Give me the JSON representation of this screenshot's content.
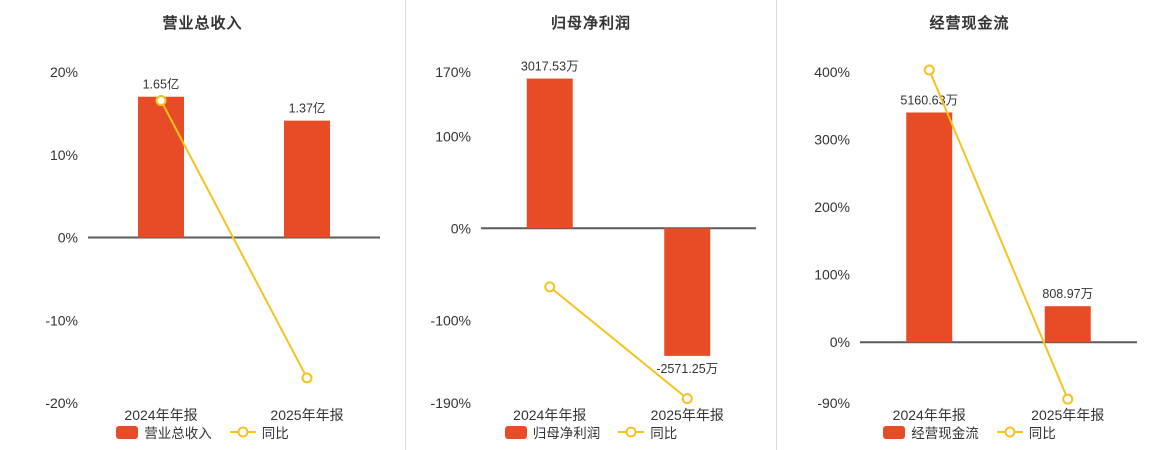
{
  "chart_data": [
    {
      "type": "bar",
      "title": "营业总收入",
      "categories": [
        "2024年年报",
        "2025年年报"
      ],
      "bar_series": {
        "name": "营业总收入",
        "values": [
          1.65,
          1.37
        ],
        "unit": "亿",
        "labels": [
          "1.65亿",
          "1.37亿"
        ]
      },
      "line_series": {
        "name": "同比",
        "values_pct": [
          16.55,
          -16.97
        ]
      },
      "y_axis": {
        "unit": "%",
        "max": 20,
        "min": -20,
        "ticks": [
          20,
          10,
          0,
          -10,
          -20
        ]
      },
      "bar_axis_max": 1.94,
      "grid": false,
      "legend_position": "bottom"
    },
    {
      "type": "bar",
      "title": "归母净利润",
      "categories": [
        "2024年年报",
        "2025年年报"
      ],
      "bar_series": {
        "name": "归母净利润",
        "values": [
          3017.53,
          -2571.25
        ],
        "unit": "万",
        "labels": [
          "3017.53万",
          "-2571.25万"
        ]
      },
      "line_series": {
        "name": "同比",
        "values_pct": [
          -63.7,
          -185.21
        ]
      },
      "y_axis": {
        "unit": "%",
        "max": 170,
        "min": -190,
        "ticks": [
          170,
          100,
          0,
          -100,
          -190
        ]
      },
      "bar_axis_max": 3150,
      "grid": false,
      "legend_position": "bottom"
    },
    {
      "type": "bar",
      "title": "经营现金流",
      "categories": [
        "2024年年报",
        "2025年年报"
      ],
      "bar_series": {
        "name": "经营现金流",
        "values": [
          5160.63,
          808.97
        ],
        "unit": "万",
        "labels": [
          "5160.63万",
          "808.97万"
        ]
      },
      "line_series": {
        "name": "同比",
        "values_pct": [
          402.9,
          -84.32
        ]
      },
      "y_axis": {
        "unit": "%",
        "max": 400,
        "min": -90,
        "ticks": [
          400,
          300,
          200,
          100,
          0,
          -90
        ]
      },
      "bar_axis_max": 6070,
      "grid": false,
      "legend_position": "bottom"
    }
  ],
  "colors": {
    "bar": "#e84c26",
    "line": "#f5c31f",
    "marker_fill": "#ffffff",
    "title_text": "#333333",
    "axis_text": "#333333",
    "zero_line": "#5b5b5b",
    "value_label": "#333333",
    "divider": "#dcdcdc",
    "background": "#ffffff"
  }
}
